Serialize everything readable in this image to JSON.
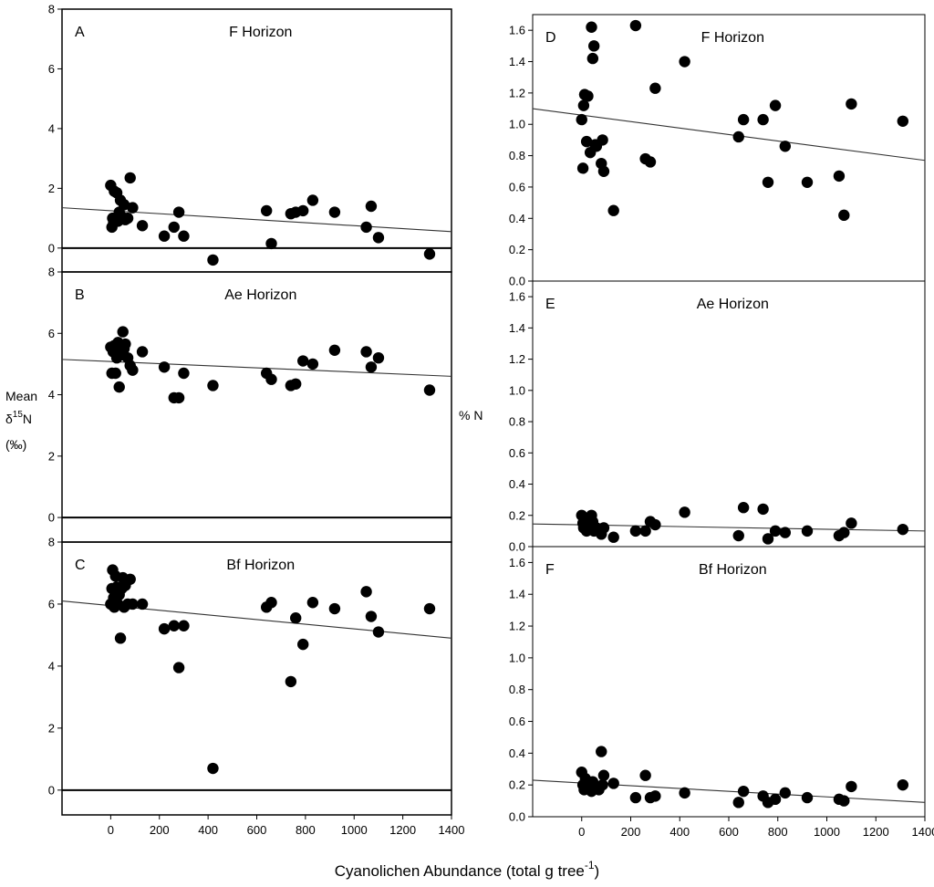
{
  "figure": {
    "xlabel": "Cyanolichen Abundance (total g tree",
    "xlabel_superscript": "-1",
    "xlabel_close": ")",
    "left_ylabel": {
      "line1": "Mean",
      "delta": "δ",
      "mass": "15",
      "element": "N",
      "units": "(‰)"
    },
    "right_ylabel": "% N"
  },
  "chart_data": [
    {
      "id": "A",
      "type": "scatter",
      "panel_label": "A",
      "title": "F Horizon",
      "ylabel": "Mean δ15N (‰)",
      "xlim": [
        -200,
        1400
      ],
      "ylim": [
        -0.8,
        8
      ],
      "yticks": [
        0,
        2,
        4,
        6,
        8
      ],
      "xticks": [],
      "zero_line": true,
      "trend": {
        "x": [
          -200,
          1400
        ],
        "y": [
          1.35,
          0.55
        ]
      },
      "points": [
        [
          0,
          2.1
        ],
        [
          5,
          0.7
        ],
        [
          8,
          1.0
        ],
        [
          12,
          0.85
        ],
        [
          15,
          1.9
        ],
        [
          20,
          1.0
        ],
        [
          25,
          1.85
        ],
        [
          30,
          0.9
        ],
        [
          35,
          1.2
        ],
        [
          40,
          1.6
        ],
        [
          45,
          1.05
        ],
        [
          50,
          1.0
        ],
        [
          55,
          1.45
        ],
        [
          60,
          0.95
        ],
        [
          70,
          1.0
        ],
        [
          80,
          2.35
        ],
        [
          90,
          1.35
        ],
        [
          130,
          0.75
        ],
        [
          220,
          0.4
        ],
        [
          260,
          0.7
        ],
        [
          280,
          1.2
        ],
        [
          300,
          0.4
        ],
        [
          420,
          -0.4
        ],
        [
          640,
          1.25
        ],
        [
          660,
          0.15
        ],
        [
          740,
          1.15
        ],
        [
          760,
          1.2
        ],
        [
          790,
          1.25
        ],
        [
          830,
          1.6
        ],
        [
          920,
          1.2
        ],
        [
          1050,
          0.7
        ],
        [
          1070,
          1.4
        ],
        [
          1100,
          0.35
        ],
        [
          1310,
          -0.2
        ]
      ]
    },
    {
      "id": "B",
      "type": "scatter",
      "panel_label": "B",
      "title": "Ae Horizon",
      "ylabel": "Mean δ15N (‰)",
      "xlim": [
        -200,
        1400
      ],
      "ylim": [
        -0.8,
        8
      ],
      "yticks": [
        0,
        2,
        4,
        6,
        8
      ],
      "xticks": [],
      "zero_line": true,
      "trend": {
        "x": [
          -200,
          1400
        ],
        "y": [
          5.15,
          4.6
        ]
      },
      "points": [
        [
          0,
          5.55
        ],
        [
          5,
          4.7
        ],
        [
          10,
          5.4
        ],
        [
          15,
          5.6
        ],
        [
          20,
          4.7
        ],
        [
          25,
          5.2
        ],
        [
          30,
          5.7
        ],
        [
          35,
          4.25
        ],
        [
          40,
          5.55
        ],
        [
          45,
          5.3
        ],
        [
          50,
          6.05
        ],
        [
          55,
          5.5
        ],
        [
          60,
          5.65
        ],
        [
          70,
          5.2
        ],
        [
          80,
          4.95
        ],
        [
          90,
          4.8
        ],
        [
          130,
          5.4
        ],
        [
          220,
          4.9
        ],
        [
          260,
          3.9
        ],
        [
          280,
          3.9
        ],
        [
          300,
          4.7
        ],
        [
          420,
          4.3
        ],
        [
          640,
          4.7
        ],
        [
          660,
          4.5
        ],
        [
          740,
          4.3
        ],
        [
          760,
          4.35
        ],
        [
          790,
          5.1
        ],
        [
          830,
          5.0
        ],
        [
          920,
          5.45
        ],
        [
          1050,
          5.4
        ],
        [
          1070,
          4.9
        ],
        [
          1100,
          5.2
        ],
        [
          1310,
          4.15
        ]
      ]
    },
    {
      "id": "C",
      "type": "scatter",
      "panel_label": "C",
      "title": "Bf Horizon",
      "ylabel": "Mean δ15N (‰)",
      "xlim": [
        -200,
        1400
      ],
      "ylim": [
        -0.8,
        8
      ],
      "yticks": [
        0,
        2,
        4,
        6,
        8
      ],
      "xticks": [
        0,
        200,
        400,
        600,
        800,
        1000,
        1200,
        1400
      ],
      "zero_line": true,
      "trend": {
        "x": [
          -200,
          1400
        ],
        "y": [
          6.1,
          4.9
        ]
      },
      "points": [
        [
          0,
          6.0
        ],
        [
          5,
          6.5
        ],
        [
          8,
          7.1
        ],
        [
          12,
          6.2
        ],
        [
          15,
          5.9
        ],
        [
          20,
          6.9
        ],
        [
          25,
          6.55
        ],
        [
          30,
          6.0
        ],
        [
          35,
          6.3
        ],
        [
          40,
          4.9
        ],
        [
          45,
          6.5
        ],
        [
          50,
          6.85
        ],
        [
          55,
          5.9
        ],
        [
          60,
          6.6
        ],
        [
          70,
          6.0
        ],
        [
          80,
          6.8
        ],
        [
          90,
          6.0
        ],
        [
          130,
          6.0
        ],
        [
          220,
          5.2
        ],
        [
          260,
          5.3
        ],
        [
          280,
          3.95
        ],
        [
          300,
          5.3
        ],
        [
          420,
          0.7
        ],
        [
          640,
          5.9
        ],
        [
          660,
          6.05
        ],
        [
          740,
          3.5
        ],
        [
          760,
          5.55
        ],
        [
          790,
          4.7
        ],
        [
          830,
          6.05
        ],
        [
          920,
          5.85
        ],
        [
          1050,
          6.4
        ],
        [
          1070,
          5.6
        ],
        [
          1100,
          5.1
        ],
        [
          1310,
          5.85
        ]
      ]
    },
    {
      "id": "D",
      "type": "scatter",
      "panel_label": "D",
      "title": "F Horizon",
      "ylabel": "% N",
      "xlim": [
        -200,
        1400
      ],
      "ylim": [
        0,
        1.7
      ],
      "yticks": [
        0.0,
        0.2,
        0.4,
        0.6,
        0.8,
        1.0,
        1.2,
        1.4,
        1.6
      ],
      "xticks": [],
      "zero_line": false,
      "trend": {
        "x": [
          -200,
          1400
        ],
        "y": [
          1.1,
          0.77
        ]
      },
      "points": [
        [
          0,
          1.03
        ],
        [
          5,
          0.72
        ],
        [
          8,
          1.12
        ],
        [
          12,
          1.19
        ],
        [
          20,
          0.89
        ],
        [
          25,
          1.18
        ],
        [
          35,
          0.82
        ],
        [
          40,
          1.62
        ],
        [
          45,
          1.42
        ],
        [
          50,
          1.5
        ],
        [
          55,
          0.87
        ],
        [
          60,
          0.86
        ],
        [
          80,
          0.75
        ],
        [
          85,
          0.9
        ],
        [
          90,
          0.7
        ],
        [
          130,
          0.45
        ],
        [
          220,
          1.63
        ],
        [
          260,
          0.78
        ],
        [
          280,
          0.76
        ],
        [
          300,
          1.23
        ],
        [
          420,
          1.4
        ],
        [
          640,
          0.92
        ],
        [
          660,
          1.03
        ],
        [
          740,
          1.03
        ],
        [
          760,
          0.63
        ],
        [
          790,
          1.12
        ],
        [
          830,
          0.86
        ],
        [
          920,
          0.63
        ],
        [
          1050,
          0.67
        ],
        [
          1070,
          0.42
        ],
        [
          1100,
          1.13
        ],
        [
          1310,
          1.02
        ]
      ]
    },
    {
      "id": "E",
      "type": "scatter",
      "panel_label": "E",
      "title": "Ae Horizon",
      "ylabel": "% N",
      "xlim": [
        -200,
        1400
      ],
      "ylim": [
        0,
        1.7
      ],
      "yticks": [
        0.0,
        0.2,
        0.4,
        0.6,
        0.8,
        1.0,
        1.2,
        1.4,
        1.6
      ],
      "xticks": [],
      "zero_line": false,
      "trend": {
        "x": [
          -200,
          1400
        ],
        "y": [
          0.145,
          0.1
        ]
      },
      "points": [
        [
          0,
          0.2
        ],
        [
          5,
          0.15
        ],
        [
          8,
          0.12
        ],
        [
          12,
          0.18
        ],
        [
          20,
          0.1
        ],
        [
          25,
          0.13
        ],
        [
          35,
          0.14
        ],
        [
          40,
          0.2
        ],
        [
          45,
          0.16
        ],
        [
          50,
          0.1
        ],
        [
          60,
          0.12
        ],
        [
          80,
          0.08
        ],
        [
          90,
          0.12
        ],
        [
          130,
          0.06
        ],
        [
          220,
          0.1
        ],
        [
          260,
          0.1
        ],
        [
          280,
          0.16
        ],
        [
          300,
          0.14
        ],
        [
          420,
          0.22
        ],
        [
          640,
          0.07
        ],
        [
          660,
          0.25
        ],
        [
          740,
          0.24
        ],
        [
          760,
          0.05
        ],
        [
          790,
          0.1
        ],
        [
          830,
          0.09
        ],
        [
          920,
          0.1
        ],
        [
          1050,
          0.07
        ],
        [
          1070,
          0.09
        ],
        [
          1100,
          0.15
        ],
        [
          1310,
          0.11
        ]
      ]
    },
    {
      "id": "F",
      "type": "scatter",
      "panel_label": "F",
      "title": "Bf Horizon",
      "ylabel": "% N",
      "xlim": [
        -200,
        1400
      ],
      "ylim": [
        0,
        1.7
      ],
      "yticks": [
        0.0,
        0.2,
        0.4,
        0.6,
        0.8,
        1.0,
        1.2,
        1.4,
        1.6
      ],
      "xticks": [
        0,
        200,
        400,
        600,
        800,
        1000,
        1200,
        1400
      ],
      "zero_line": false,
      "trend": {
        "x": [
          -200,
          1400
        ],
        "y": [
          0.23,
          0.09
        ]
      },
      "points": [
        [
          0,
          0.28
        ],
        [
          5,
          0.2
        ],
        [
          10,
          0.17
        ],
        [
          15,
          0.24
        ],
        [
          20,
          0.22
        ],
        [
          25,
          0.18
        ],
        [
          35,
          0.2
        ],
        [
          40,
          0.16
        ],
        [
          45,
          0.22
        ],
        [
          50,
          0.18
        ],
        [
          60,
          0.19
        ],
        [
          70,
          0.17
        ],
        [
          80,
          0.41
        ],
        [
          85,
          0.2
        ],
        [
          90,
          0.26
        ],
        [
          130,
          0.21
        ],
        [
          220,
          0.12
        ],
        [
          260,
          0.26
        ],
        [
          280,
          0.12
        ],
        [
          300,
          0.13
        ],
        [
          420,
          0.15
        ],
        [
          640,
          0.09
        ],
        [
          660,
          0.16
        ],
        [
          740,
          0.13
        ],
        [
          760,
          0.09
        ],
        [
          790,
          0.11
        ],
        [
          830,
          0.15
        ],
        [
          920,
          0.12
        ],
        [
          1050,
          0.11
        ],
        [
          1070,
          0.1
        ],
        [
          1100,
          0.19
        ],
        [
          1310,
          0.2
        ]
      ]
    }
  ]
}
